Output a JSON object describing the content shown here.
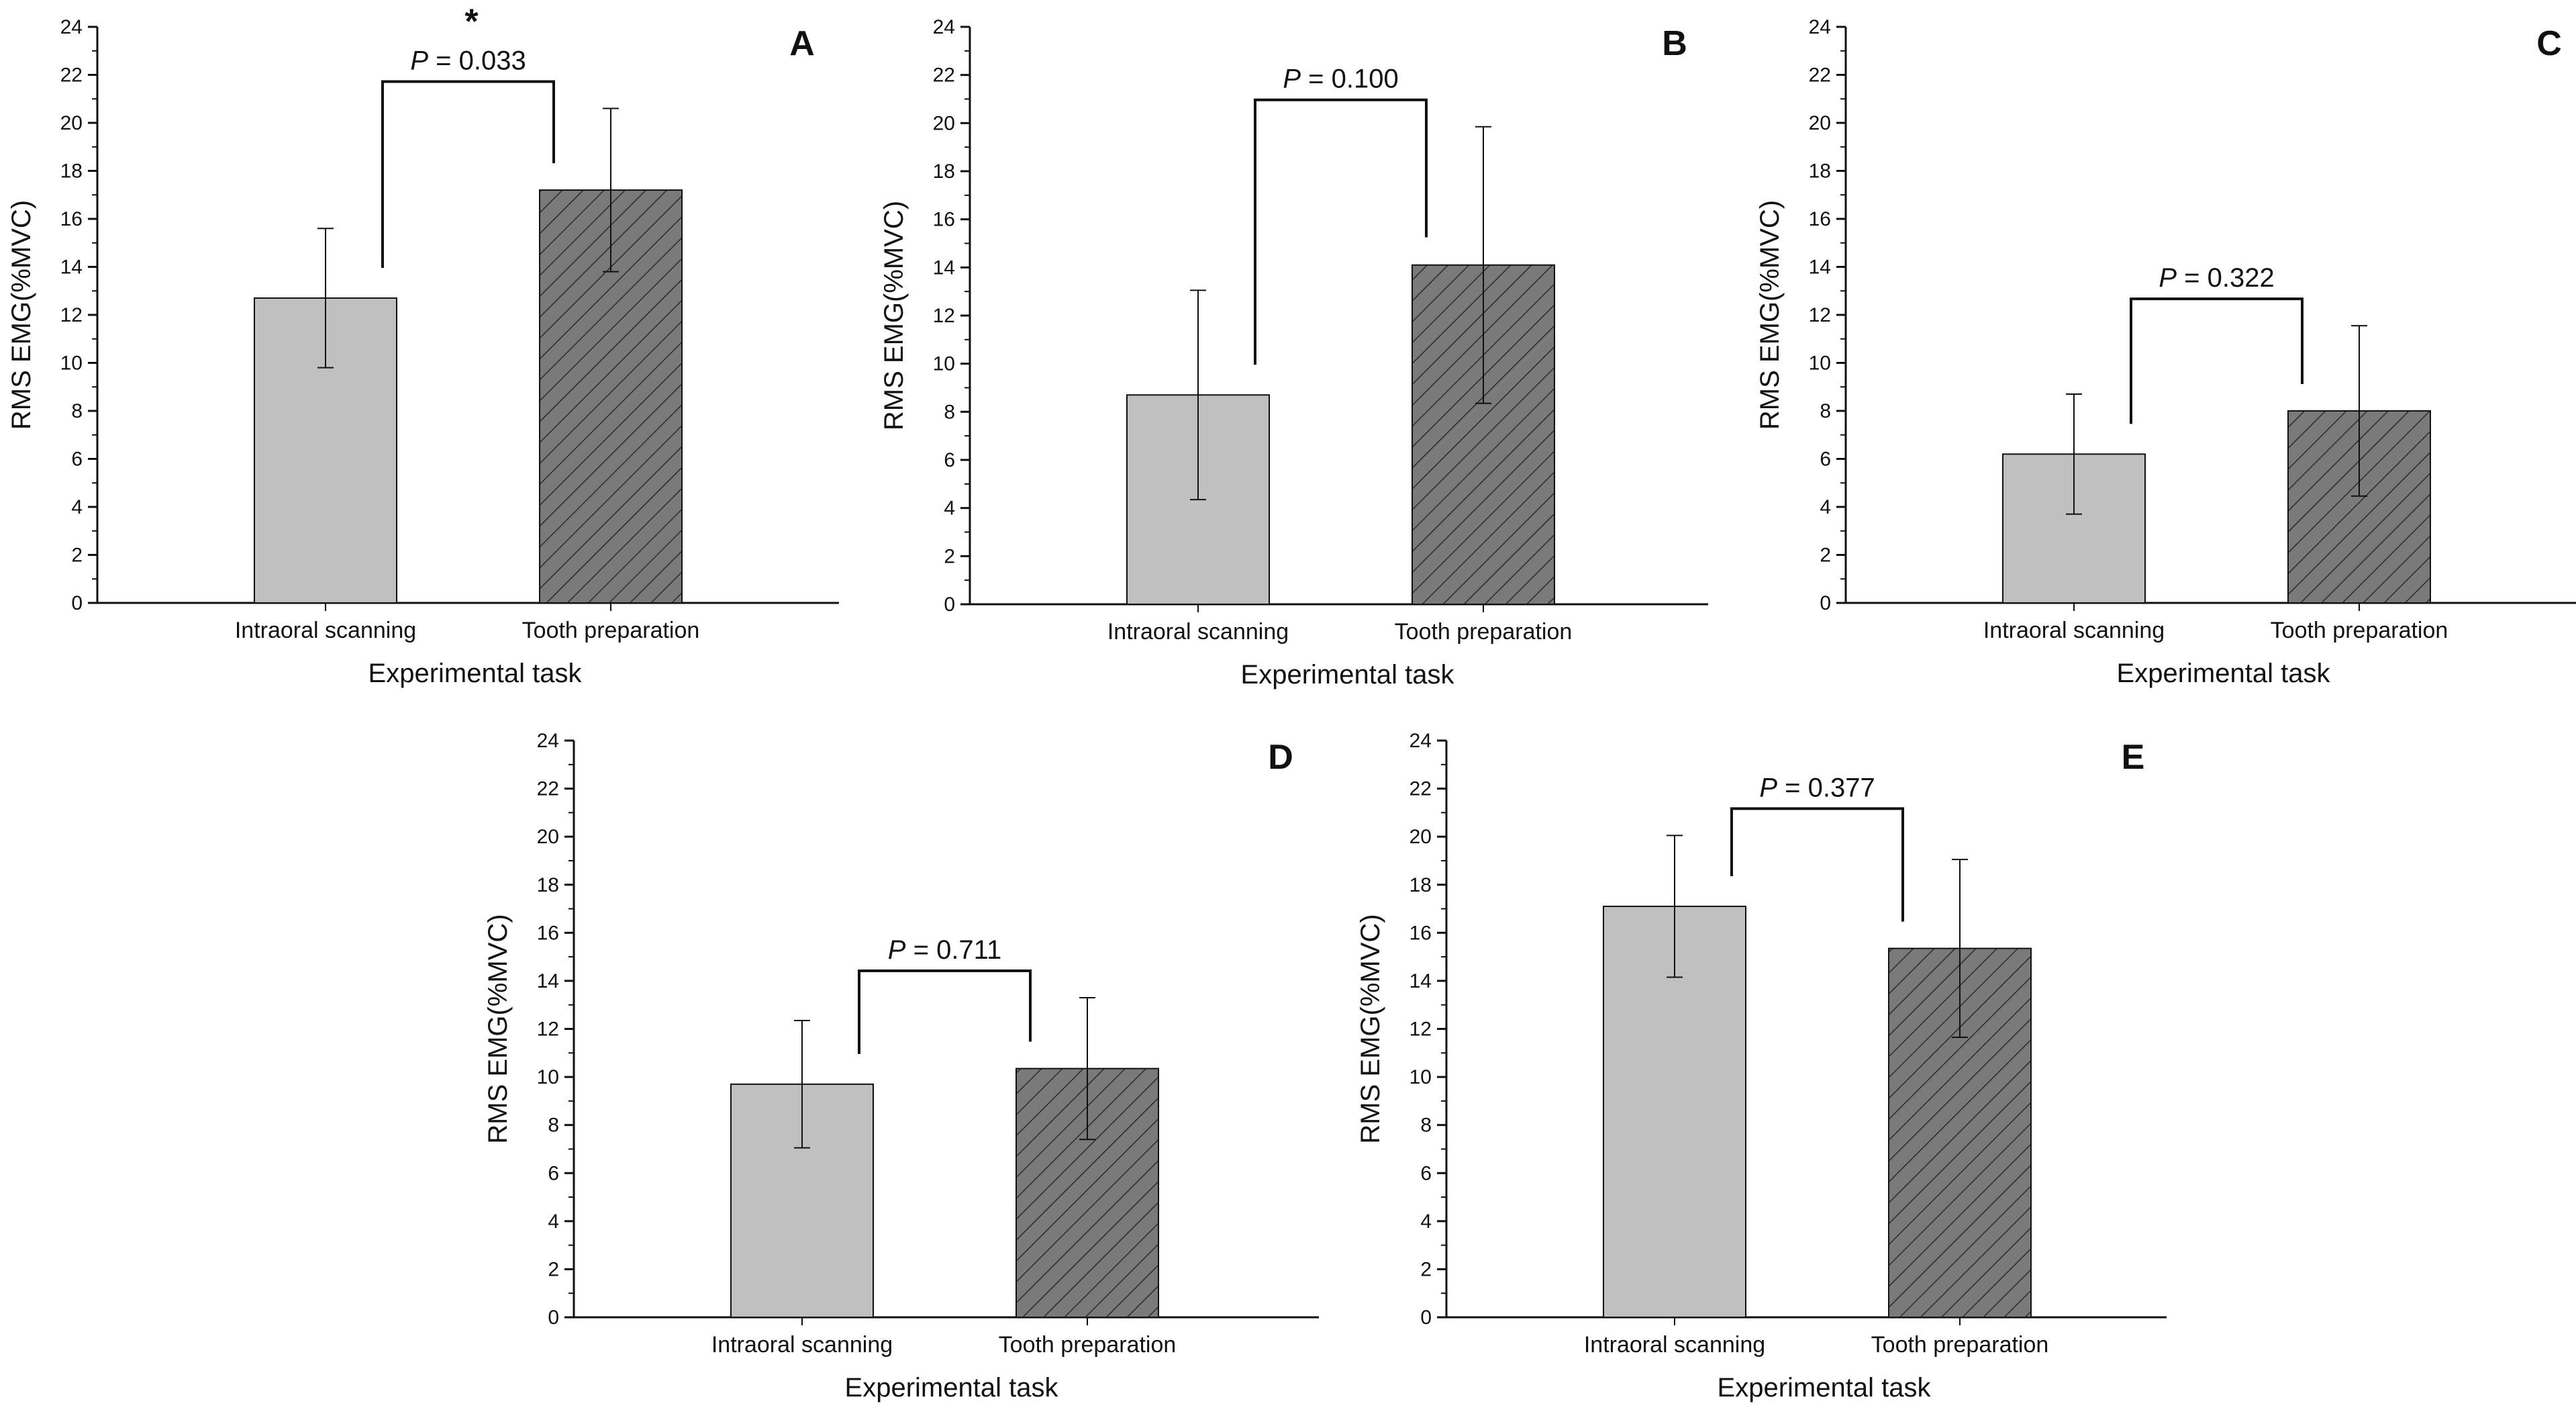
{
  "chart_data": [
    {
      "panel": "A",
      "type": "bar",
      "categories": [
        "Intraoral scanning",
        "Tooth preparation"
      ],
      "values": [
        12.7,
        17.2
      ],
      "error": [
        2.9,
        3.4
      ],
      "p_label": "P",
      "p_value": " = 0.033",
      "significance": "*",
      "xlabel": "Experimental task",
      "ylabel": "RMS EMG(%MVC)",
      "ylim": [
        0,
        24
      ],
      "yticks": [
        "0",
        "2",
        "4",
        "6",
        "8",
        "10",
        "12",
        "14",
        "16",
        "18",
        "20",
        "22",
        "24"
      ]
    },
    {
      "panel": "B",
      "type": "bar",
      "categories": [
        "Intraoral scanning",
        "Tooth preparation"
      ],
      "values": [
        8.7,
        14.1
      ],
      "error": [
        4.35,
        5.75
      ],
      "p_label": "P",
      "p_value": " = 0.100",
      "significance": "",
      "xlabel": "Experimental task",
      "ylabel": "RMS EMG(%MVC)",
      "ylim": [
        0,
        24
      ],
      "yticks": [
        "0",
        "2",
        "4",
        "6",
        "8",
        "10",
        "12",
        "14",
        "16",
        "18",
        "20",
        "22",
        "24"
      ]
    },
    {
      "panel": "C",
      "type": "bar",
      "categories": [
        "Intraoral scanning",
        "Tooth preparation"
      ],
      "values": [
        6.2,
        8.0
      ],
      "error": [
        2.5,
        3.55
      ],
      "p_label": "P",
      "p_value": " = 0.322",
      "significance": "",
      "xlabel": "Experimental task",
      "ylabel": "RMS EMG(%MVC)",
      "ylim": [
        0,
        24
      ],
      "yticks": [
        "0",
        "2",
        "4",
        "6",
        "8",
        "10",
        "12",
        "14",
        "16",
        "18",
        "20",
        "22",
        "24"
      ]
    },
    {
      "panel": "D",
      "type": "bar",
      "categories": [
        "Intraoral scanning",
        "Tooth preparation"
      ],
      "values": [
        9.7,
        10.35
      ],
      "error": [
        2.65,
        2.95
      ],
      "p_label": "P",
      "p_value": " = 0.711",
      "significance": "",
      "xlabel": "Experimental task",
      "ylabel": "RMS EMG(%MVC)",
      "ylim": [
        0,
        24
      ],
      "yticks": [
        "0",
        "2",
        "4",
        "6",
        "8",
        "10",
        "12",
        "14",
        "16",
        "18",
        "20",
        "22",
        "24"
      ]
    },
    {
      "panel": "E",
      "type": "bar",
      "categories": [
        "Intraoral scanning",
        "Tooth preparation"
      ],
      "values": [
        17.1,
        15.35
      ],
      "error": [
        2.95,
        3.7
      ],
      "p_label": "P",
      "p_value": " = 0.377",
      "significance": "",
      "xlabel": "Experimental task",
      "ylabel": "RMS EMG(%MVC)",
      "ylim": [
        0,
        24
      ],
      "yticks": [
        "0",
        "2",
        "4",
        "6",
        "8",
        "10",
        "12",
        "14",
        "16",
        "18",
        "20",
        "22",
        "24"
      ]
    }
  ],
  "colors": {
    "bar_intraoral": "#c0c0c0",
    "bar_tooth": "#7a7a7a",
    "hatch": "#2a2a2a",
    "axis": "#111111"
  }
}
